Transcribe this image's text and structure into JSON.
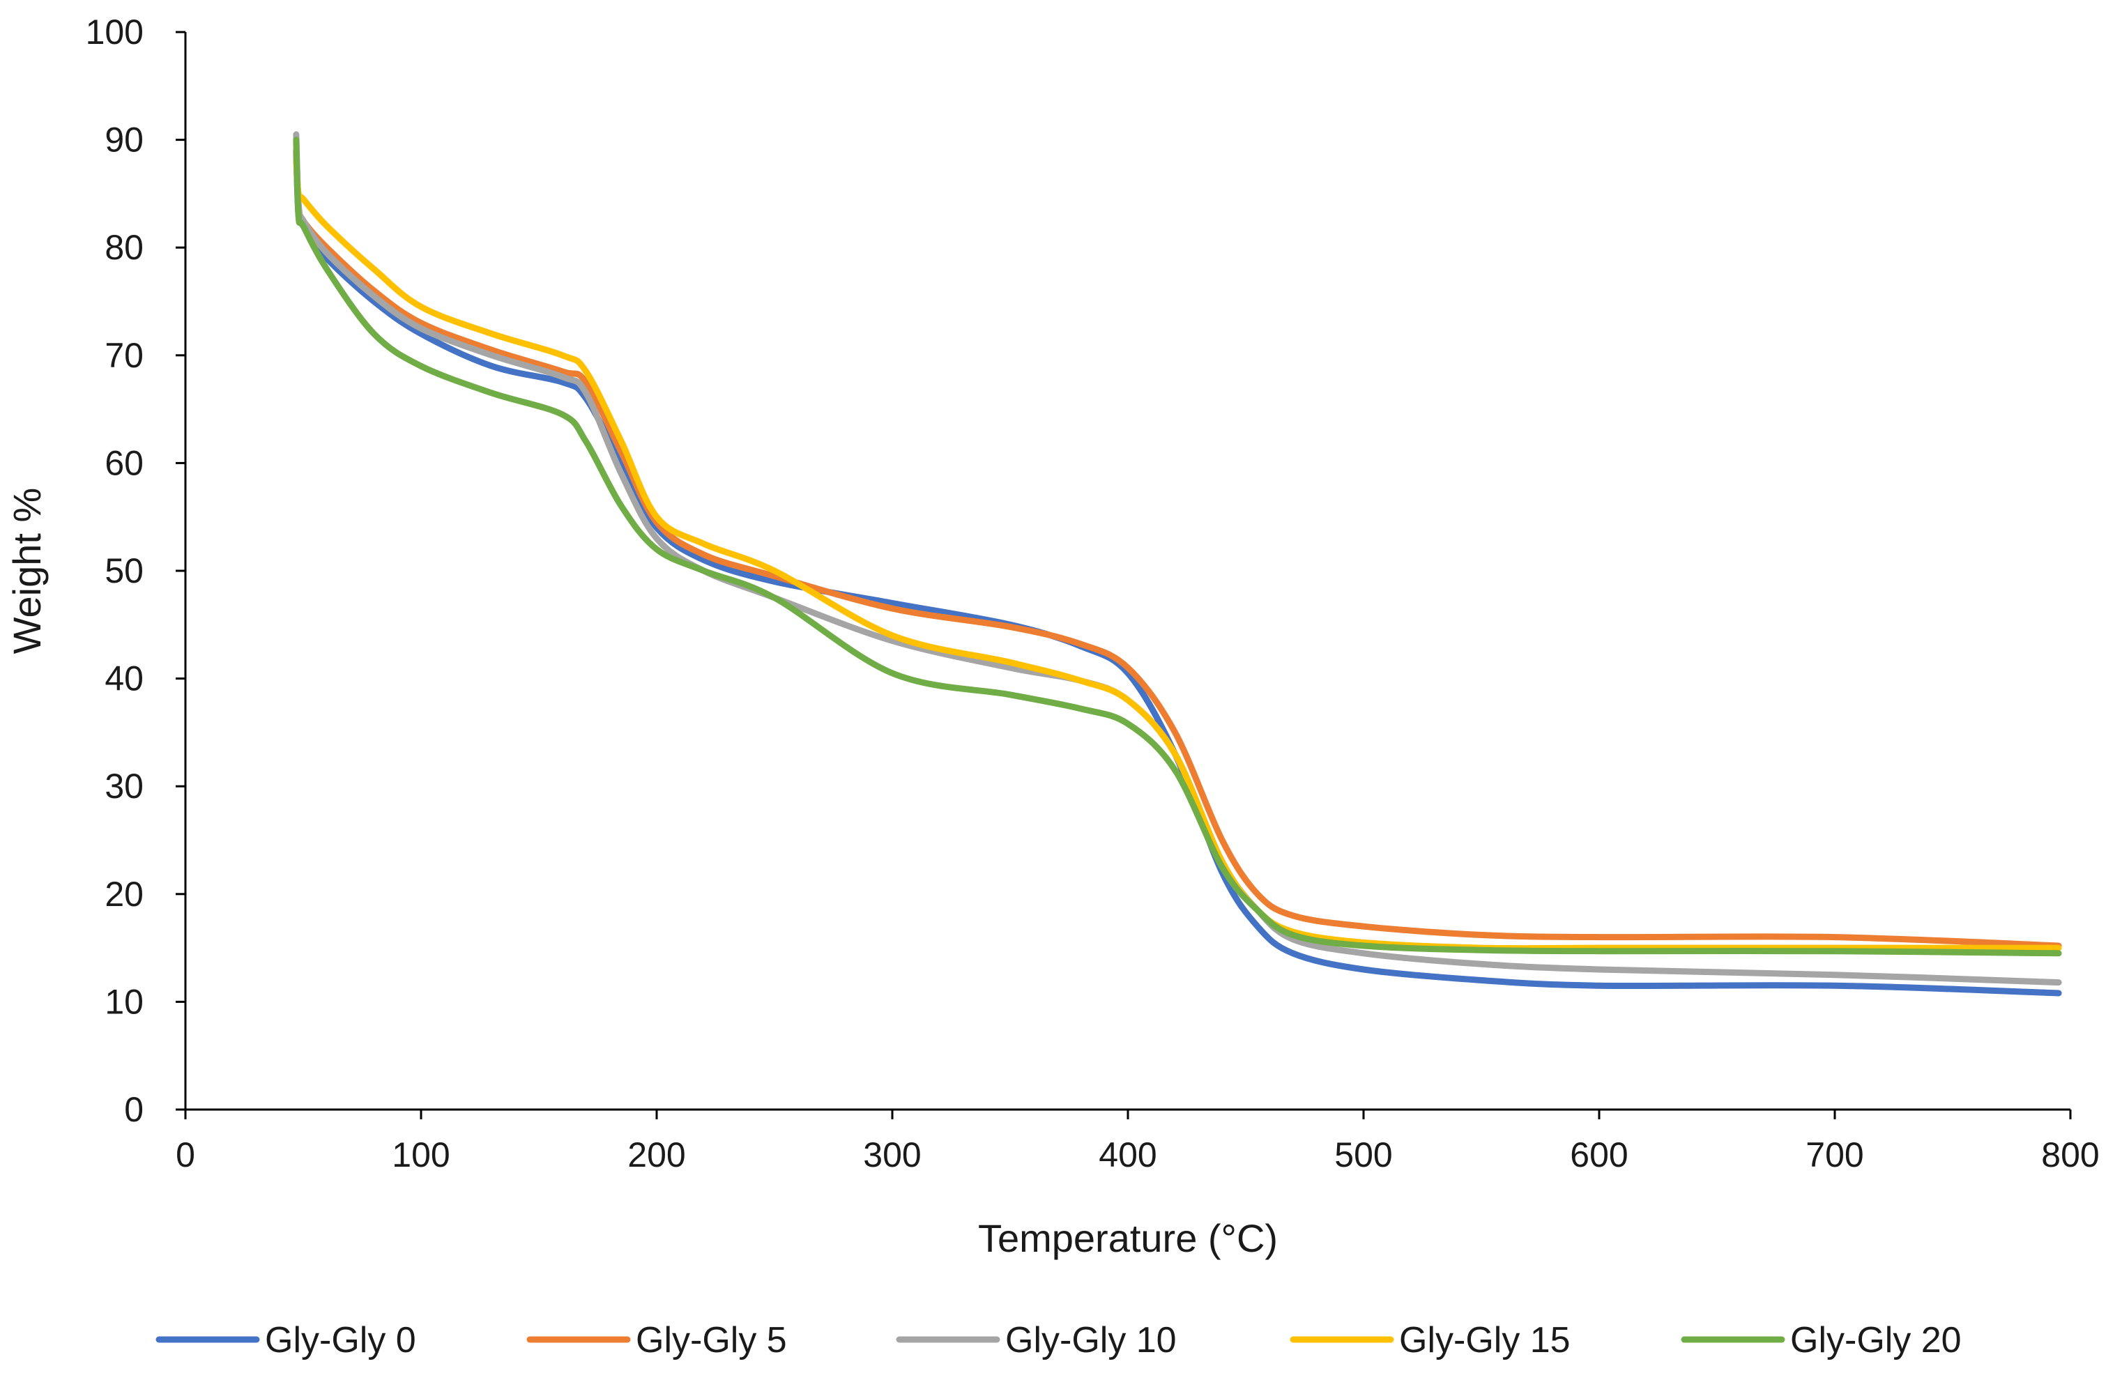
{
  "chart_data": {
    "type": "line",
    "title": "",
    "xlabel": "Temperature (°C)",
    "ylabel": "Weight %",
    "xlim": [
      0,
      800
    ],
    "ylim": [
      0,
      100
    ],
    "xticks": [
      0,
      100,
      200,
      300,
      400,
      500,
      600,
      700,
      800
    ],
    "yticks": [
      0,
      10,
      20,
      30,
      40,
      50,
      60,
      70,
      80,
      90,
      100
    ],
    "grid": false,
    "legend_position": "bottom",
    "series": [
      {
        "name": "Gly-Gly 0",
        "color": "#4472C4",
        "points": [
          [
            47,
            89
          ],
          [
            48,
            83
          ],
          [
            50,
            82
          ],
          [
            60,
            79
          ],
          [
            80,
            75
          ],
          [
            100,
            72
          ],
          [
            130,
            69
          ],
          [
            160,
            67.5
          ],
          [
            170,
            66
          ],
          [
            185,
            60
          ],
          [
            200,
            54
          ],
          [
            220,
            51
          ],
          [
            250,
            49
          ],
          [
            300,
            47
          ],
          [
            350,
            45
          ],
          [
            380,
            43
          ],
          [
            400,
            40.5
          ],
          [
            420,
            33
          ],
          [
            440,
            22
          ],
          [
            455,
            17
          ],
          [
            470,
            14.5
          ],
          [
            500,
            13
          ],
          [
            550,
            12
          ],
          [
            600,
            11.5
          ],
          [
            700,
            11.5
          ],
          [
            795,
            10.8
          ]
        ]
      },
      {
        "name": "Gly-Gly 5",
        "color": "#ED7D31",
        "points": [
          [
            47,
            89
          ],
          [
            48,
            84
          ],
          [
            50,
            82.5
          ],
          [
            60,
            80
          ],
          [
            80,
            76
          ],
          [
            100,
            73
          ],
          [
            130,
            70.5
          ],
          [
            160,
            68.5
          ],
          [
            170,
            67.5
          ],
          [
            185,
            61
          ],
          [
            200,
            54.5
          ],
          [
            220,
            51.5
          ],
          [
            250,
            49.5
          ],
          [
            300,
            46.5
          ],
          [
            350,
            44.8
          ],
          [
            380,
            43.2
          ],
          [
            400,
            41
          ],
          [
            420,
            35
          ],
          [
            440,
            25
          ],
          [
            455,
            20
          ],
          [
            470,
            18
          ],
          [
            500,
            17
          ],
          [
            550,
            16.2
          ],
          [
            600,
            16
          ],
          [
            700,
            16
          ],
          [
            795,
            15.2
          ]
        ]
      },
      {
        "name": "Gly-Gly 10",
        "color": "#A5A5A5",
        "points": [
          [
            47,
            90.5
          ],
          [
            48,
            84
          ],
          [
            50,
            82.5
          ],
          [
            60,
            79.5
          ],
          [
            80,
            75.5
          ],
          [
            100,
            72.5
          ],
          [
            130,
            70
          ],
          [
            160,
            68
          ],
          [
            170,
            66.5
          ],
          [
            185,
            59
          ],
          [
            200,
            53
          ],
          [
            220,
            50
          ],
          [
            250,
            47.5
          ],
          [
            300,
            43.5
          ],
          [
            350,
            41
          ],
          [
            380,
            39.8
          ],
          [
            400,
            38
          ],
          [
            420,
            33
          ],
          [
            440,
            23
          ],
          [
            455,
            18.5
          ],
          [
            470,
            15.8
          ],
          [
            500,
            14.5
          ],
          [
            550,
            13.5
          ],
          [
            600,
            13
          ],
          [
            700,
            12.5
          ],
          [
            795,
            11.8
          ]
        ]
      },
      {
        "name": "Gly-Gly 15",
        "color": "#FFC000",
        "points": [
          [
            47,
            88
          ],
          [
            48,
            85
          ],
          [
            50,
            84.5
          ],
          [
            60,
            82
          ],
          [
            80,
            78
          ],
          [
            100,
            74.5
          ],
          [
            130,
            72
          ],
          [
            160,
            70
          ],
          [
            170,
            68.5
          ],
          [
            185,
            62
          ],
          [
            200,
            55
          ],
          [
            220,
            52.5
          ],
          [
            250,
            50
          ],
          [
            300,
            44
          ],
          [
            350,
            41.5
          ],
          [
            380,
            39.8
          ],
          [
            400,
            38
          ],
          [
            420,
            33
          ],
          [
            440,
            23
          ],
          [
            455,
            18.5
          ],
          [
            470,
            16.5
          ],
          [
            500,
            15.5
          ],
          [
            550,
            15
          ],
          [
            600,
            15
          ],
          [
            700,
            15
          ],
          [
            795,
            15
          ]
        ]
      },
      {
        "name": "Gly-Gly 20",
        "color": "#70AD47",
        "points": [
          [
            47,
            90
          ],
          [
            48,
            83
          ],
          [
            50,
            82
          ],
          [
            60,
            78
          ],
          [
            80,
            72
          ],
          [
            100,
            69
          ],
          [
            130,
            66.5
          ],
          [
            160,
            64.5
          ],
          [
            170,
            62
          ],
          [
            185,
            56
          ],
          [
            200,
            52
          ],
          [
            220,
            50
          ],
          [
            250,
            47.5
          ],
          [
            300,
            40.5
          ],
          [
            350,
            38.5
          ],
          [
            380,
            37.2
          ],
          [
            400,
            35.8
          ],
          [
            420,
            31.5
          ],
          [
            440,
            22.5
          ],
          [
            455,
            18.5
          ],
          [
            470,
            16.2
          ],
          [
            500,
            15.2
          ],
          [
            550,
            14.8
          ],
          [
            600,
            14.7
          ],
          [
            700,
            14.7
          ],
          [
            795,
            14.5
          ]
        ]
      }
    ]
  }
}
